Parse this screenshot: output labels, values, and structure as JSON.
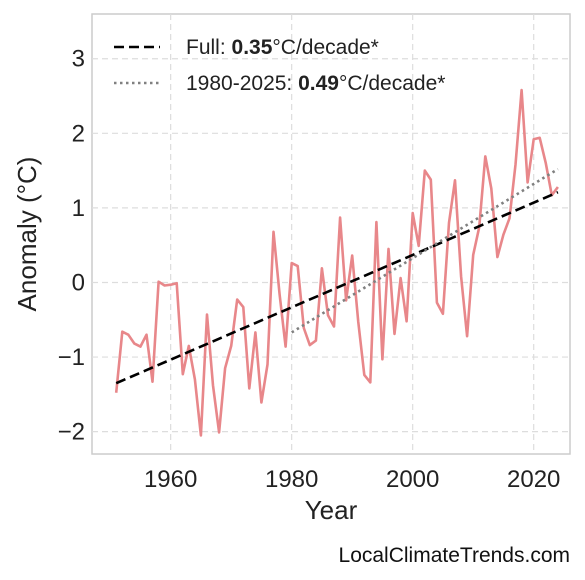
{
  "chart_data": {
    "type": "line",
    "title": "",
    "xlabel": "Year",
    "ylabel": "Anomaly (°C)",
    "xlim": [
      1947,
      2026
    ],
    "ylim": [
      -2.3,
      3.6
    ],
    "xticks": [
      1960,
      1980,
      2000,
      2020
    ],
    "yticks": [
      -2,
      -1,
      0,
      1,
      2,
      3
    ],
    "ytick_labels": [
      "−2",
      "−1",
      "0",
      "1",
      "2",
      "3"
    ],
    "grid": true,
    "legend_position": "top-left",
    "series": [
      {
        "style": "solid",
        "color": "#e8878a",
        "x": [
          1951,
          1952,
          1953,
          1954,
          1955,
          1956,
          1957,
          1958,
          1959,
          1960,
          1961,
          1962,
          1963,
          1964,
          1965,
          1966,
          1967,
          1968,
          1969,
          1970,
          1971,
          1972,
          1973,
          1974,
          1975,
          1976,
          1977,
          1978,
          1979,
          1980,
          1981,
          1982,
          1983,
          1984,
          1985,
          1986,
          1987,
          1988,
          1989,
          1990,
          1991,
          1992,
          1993,
          1994,
          1995,
          1996,
          1997,
          1998,
          1999,
          2000,
          2001,
          2002,
          2003,
          2004,
          2005,
          2006,
          2007,
          2008,
          2009,
          2010,
          2011,
          2012,
          2013,
          2014,
          2015,
          2016,
          2017,
          2018,
          2019,
          2020,
          2021,
          2022,
          2023,
          2024
        ],
        "values": [
          -1.48,
          -0.66,
          -0.7,
          -0.82,
          -0.86,
          -0.7,
          -1.33,
          0.01,
          -0.04,
          -0.03,
          -0.01,
          -1.23,
          -0.85,
          -1.3,
          -2.05,
          -0.43,
          -1.38,
          -2.01,
          -1.15,
          -0.85,
          -0.23,
          -0.33,
          -1.42,
          -0.67,
          -1.61,
          -1.1,
          0.68,
          -0.16,
          -0.86,
          0.26,
          0.22,
          -0.61,
          -0.84,
          -0.78,
          0.19,
          -0.44,
          -0.59,
          0.87,
          -0.24,
          0.36,
          -0.52,
          -1.24,
          -1.34,
          0.81,
          -1.03,
          0.45,
          -0.69,
          0.06,
          -0.52,
          0.93,
          0.49,
          1.5,
          1.38,
          -0.27,
          -0.42,
          0.8,
          1.37,
          0.08,
          -0.72,
          0.37,
          0.74,
          1.69,
          1.26,
          0.34,
          0.64,
          0.86,
          1.58,
          2.58,
          1.34,
          1.92,
          1.94,
          1.6,
          1.17,
          1.28
        ]
      },
      {
        "style": "dashed",
        "color": "#000000",
        "x": [
          1951,
          2024
        ],
        "values": [
          -1.35,
          1.21
        ]
      },
      {
        "style": "dotted",
        "color": "#808080",
        "x": [
          1980,
          2024
        ],
        "values": [
          -0.67,
          1.52
        ]
      }
    ],
    "legend": [
      {
        "prefix": "Full: ",
        "bold": "0.35",
        "suffix": "°C/decade*",
        "style": "dashed",
        "color": "#000000"
      },
      {
        "prefix": "1980-2025: ",
        "bold": "0.49",
        "suffix": "°C/decade*",
        "style": "dotted",
        "color": "#808080"
      }
    ]
  },
  "watermark": "LocalClimateTrends.com"
}
